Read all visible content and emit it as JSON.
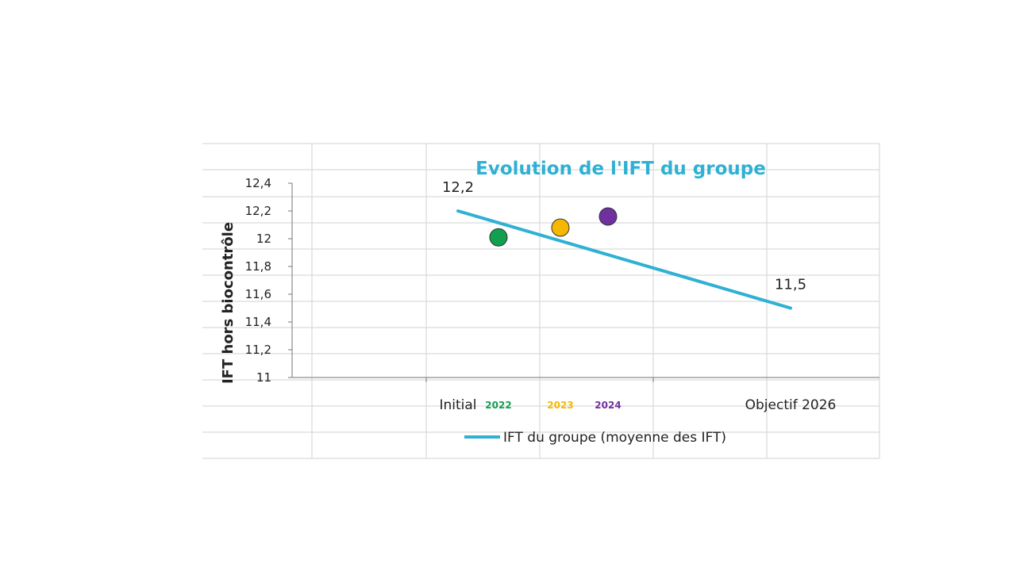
{
  "chart_data": {
    "type": "line",
    "title": "Evolution de l'IFT du groupe",
    "ylabel": "IFT  hors biocontrôle",
    "xlabel": "",
    "ylim": [
      11,
      12.4
    ],
    "yticks": [
      11,
      11.2,
      11.4,
      11.6,
      11.8,
      12,
      12.2,
      12.4
    ],
    "ytick_labels": [
      "11",
      "11,2",
      "11,4",
      "11,6",
      "11,8",
      "12",
      "12,2",
      "12,4"
    ],
    "categories": [
      "Initial",
      "Objectif 2026"
    ],
    "series": [
      {
        "name": "IFT du groupe (moyenne des IFT)",
        "color": "#2fb0d4",
        "values": [
          12.2,
          11.5
        ],
        "data_labels": [
          "12,2",
          "11,5"
        ]
      }
    ],
    "points": [
      {
        "label": "2022",
        "value": 12.01,
        "color": "#10a050"
      },
      {
        "label": "2023",
        "value": 12.08,
        "color": "#f5b800"
      },
      {
        "label": "2024",
        "value": 12.16,
        "color": "#7030a0"
      }
    ],
    "legend": "bottom",
    "grid": true
  }
}
